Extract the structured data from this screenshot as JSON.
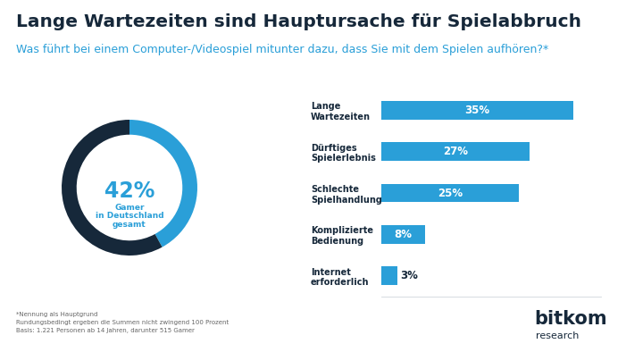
{
  "title": "Lange Wartezeiten sind Hauptursache für Spielabbruch",
  "subtitle": "Was führt bei einem Computer-/Videospiel mitunter dazu, dass Sie mit dem Spielen aufhören?*",
  "notes": [
    "*Nennung als Hauptgrund",
    "Rundungsbedingt ergeben die Summen nicht zwingend 100 Prozent",
    "Basis: 1.221 Personen ab 14 Jahren, darunter 515 Gamer"
  ],
  "source": {
    "brand": "bitkom",
    "sub": "research"
  },
  "chart_data": [
    {
      "type": "pie",
      "values": [
        42,
        58
      ],
      "colors": [
        "#2a9fd8",
        "#16283a"
      ],
      "center_label": "42%",
      "caption": "Gamer\nin Deutschland\ngesamt"
    },
    {
      "type": "bar",
      "orientation": "horizontal",
      "categories": [
        "Lange\nWartezeiten",
        "Dürftiges\nSpielerlebnis",
        "Schlechte\nSpielhandlung",
        "Komplizierte\nBedienung",
        "Internet\nerforderlich"
      ],
      "values": [
        35,
        27,
        25,
        8,
        3
      ],
      "value_labels": [
        "35%",
        "27%",
        "25%",
        "8%",
        "3%"
      ],
      "color": "#2a9fd8",
      "data_labels": true,
      "tick_labels": "y",
      "xlim": [
        0,
        40
      ]
    }
  ]
}
